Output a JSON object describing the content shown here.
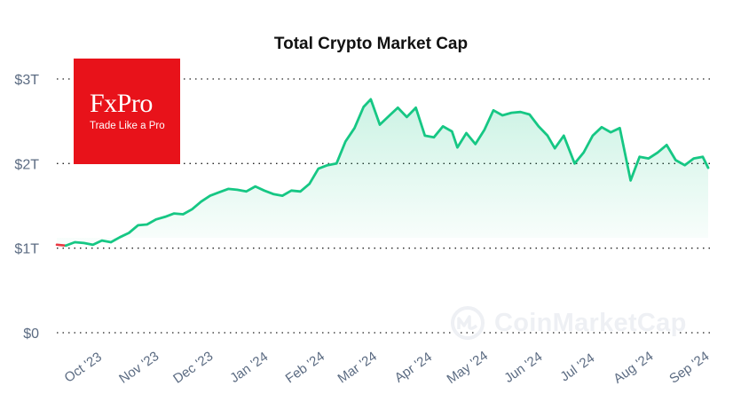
{
  "chart_data": {
    "type": "area",
    "title": "Total Crypto Market Cap",
    "xlabel": "",
    "ylabel": "",
    "y_unit": "USD trillions",
    "ylim": [
      0,
      3
    ],
    "yticks": [
      {
        "value": 0,
        "label": "$0"
      },
      {
        "value": 1,
        "label": "$1T"
      },
      {
        "value": 2,
        "label": "$2T"
      },
      {
        "value": 3,
        "label": "$3T"
      }
    ],
    "xticks": [
      "Oct '23",
      "Nov '23",
      "Dec '23",
      "Jan '24",
      "Feb '24",
      "Mar '24",
      "Apr '24",
      "May '24",
      "Jun '24",
      "Jul '24",
      "Aug '24",
      "Sep '24"
    ],
    "grid": "horizontal dotted",
    "colors": {
      "line_up": "#16c784",
      "line_down": "#ea3943",
      "fill": "#16c784"
    },
    "series": [
      {
        "x": [
          "2023-09-22",
          "2023-09-27",
          "2023-10-02",
          "2023-10-07",
          "2023-10-12",
          "2023-10-17",
          "2023-10-22",
          "2023-10-27",
          "2023-11-01",
          "2023-11-06",
          "2023-11-11",
          "2023-11-16",
          "2023-11-21",
          "2023-11-26",
          "2023-12-01",
          "2023-12-06",
          "2023-12-11",
          "2023-12-16",
          "2023-12-21",
          "2023-12-26",
          "2023-12-31",
          "2024-01-05",
          "2024-01-10",
          "2024-01-15",
          "2024-01-20",
          "2024-01-25",
          "2024-01-30",
          "2024-02-04",
          "2024-02-09",
          "2024-02-14",
          "2024-02-19",
          "2024-02-24",
          "2024-02-29",
          "2024-03-05",
          "2024-03-10",
          "2024-03-14",
          "2024-03-19",
          "2024-03-25",
          "2024-03-29",
          "2024-04-03",
          "2024-04-08",
          "2024-04-13",
          "2024-04-18",
          "2024-04-23",
          "2024-04-28",
          "2024-05-01",
          "2024-05-06",
          "2024-05-11",
          "2024-05-16",
          "2024-05-21",
          "2024-05-26",
          "2024-05-31",
          "2024-06-05",
          "2024-06-10",
          "2024-06-15",
          "2024-06-20",
          "2024-06-24",
          "2024-06-29",
          "2024-07-05",
          "2024-07-10",
          "2024-07-15",
          "2024-07-20",
          "2024-07-25",
          "2024-07-30",
          "2024-08-05",
          "2024-08-10",
          "2024-08-15",
          "2024-08-20",
          "2024-08-25",
          "2024-08-30",
          "2024-09-04",
          "2024-09-09",
          "2024-09-14",
          "2024-09-17"
        ],
        "values": [
          1.04,
          1.03,
          1.07,
          1.06,
          1.04,
          1.09,
          1.07,
          1.13,
          1.18,
          1.27,
          1.28,
          1.34,
          1.37,
          1.41,
          1.4,
          1.46,
          1.55,
          1.62,
          1.66,
          1.7,
          1.69,
          1.67,
          1.73,
          1.68,
          1.64,
          1.62,
          1.68,
          1.67,
          1.76,
          1.94,
          1.98,
          2.0,
          2.26,
          2.42,
          2.67,
          2.76,
          2.46,
          2.58,
          2.66,
          2.55,
          2.66,
          2.33,
          2.31,
          2.44,
          2.38,
          2.19,
          2.36,
          2.23,
          2.4,
          2.63,
          2.57,
          2.6,
          2.61,
          2.58,
          2.44,
          2.33,
          2.18,
          2.33,
          2.0,
          2.13,
          2.33,
          2.43,
          2.37,
          2.42,
          1.8,
          2.08,
          2.06,
          2.13,
          2.22,
          2.04,
          1.98,
          2.06,
          2.08,
          1.95
        ],
        "segment_colors_note": "first segment red (down), rest green"
      }
    ]
  },
  "logo": {
    "name": "FxPro",
    "tagline": "Trade Like a Pro",
    "color": "#e8121a"
  },
  "watermark": {
    "text": "CoinMarketCap",
    "icon": "coinmarketcap-logo-icon"
  }
}
